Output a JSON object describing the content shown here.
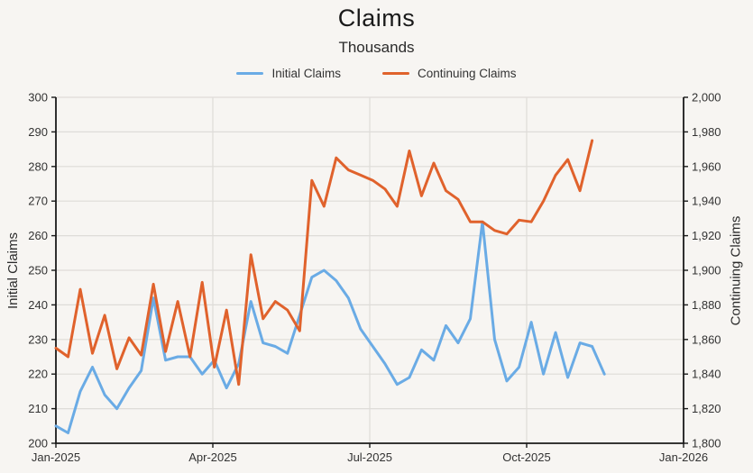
{
  "chart_data": {
    "type": "line",
    "title": "Claims",
    "subtitle": "Thousands",
    "frequency": "weekly",
    "x_start": "Jan-2025",
    "legend_position": "top",
    "grid": true,
    "series": [
      {
        "name": "Initial Claims",
        "axis": "left",
        "color": "#6aabe5",
        "values": [
          205,
          203,
          215,
          222,
          214,
          210,
          216,
          221,
          242,
          224,
          225,
          225,
          220,
          224,
          216,
          223,
          241,
          229,
          228,
          226,
          237,
          248,
          250,
          247,
          242,
          233,
          228,
          223,
          217,
          219,
          227,
          224,
          234,
          229,
          236,
          264,
          230,
          218,
          222,
          235,
          220,
          232,
          219,
          229,
          228,
          220
        ]
      },
      {
        "name": "Continuing Claims",
        "axis": "right",
        "color": "#e0622c",
        "values": [
          1855,
          1850,
          1889,
          1852,
          1874,
          1843,
          1861,
          1851,
          1892,
          1853,
          1882,
          1850,
          1893,
          1844,
          1877,
          1834,
          1909,
          1872,
          1882,
          1877,
          1865,
          1952,
          1937,
          1965,
          1958,
          1955,
          1952,
          1947,
          1937,
          1969,
          1943,
          1962,
          1946,
          1941,
          1928,
          1928,
          1923,
          1921,
          1929,
          1928,
          1940,
          1955,
          1964,
          1946,
          1975
        ]
      }
    ],
    "left_axis": {
      "label": "Initial Claims",
      "min": 200,
      "max": 300,
      "tick_step": 10,
      "tick_labels": [
        "300",
        "290",
        "280",
        "270",
        "260",
        "250",
        "240",
        "230",
        "220",
        "210",
        "200"
      ]
    },
    "right_axis": {
      "label": "Continuing Claims",
      "min": 1800,
      "max": 2000,
      "tick_step": 20,
      "tick_labels": [
        "2,000",
        "1,980",
        "1,960",
        "1,940",
        "1,920",
        "1,900",
        "1,880",
        "1,860",
        "1,840",
        "1,820",
        "1,800"
      ]
    },
    "x_axis": {
      "tick_labels": [
        "Jan-2025",
        "Apr-2025",
        "Jul-2025",
        "Oct-2025",
        "Jan-2026"
      ]
    },
    "colors": {
      "background": "#f7f5f2",
      "grid": "#dedcd8",
      "axis_line": "#1a1a1a",
      "tick_text": "#333333"
    }
  }
}
